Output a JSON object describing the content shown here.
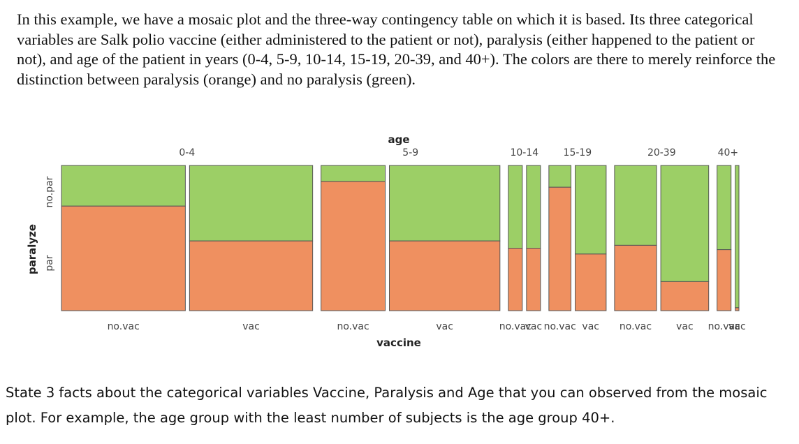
{
  "intro_text": "In this example, we have a mosaic plot and the three-way contingency table on which it is based. Its three categorical variables are Salk polio vaccine (either administered to the patient or not), paralysis (either happened to the patient or not), and age of the patient in years (0-4, 5-9, 10-14, 15-19, 20-39, and 40+). The colors are there to merely reinforce the distinction between paralysis (orange) and no paralysis (green).",
  "question_text": "State 3 facts about the categorical variables Vaccine, Paralysis and Age that you can observed from the mosaic plot. For example, the age group with the least number of subjects is the age group 40+.",
  "colors": {
    "paralysis": "#ef9060",
    "no_paralysis": "#9ccf66",
    "border": "#555555"
  },
  "chart_data": {
    "type": "mosaic",
    "top_axis_title": "age",
    "bottom_axis_title": "vaccine",
    "left_axis_title": "paralyze",
    "left_ticks": [
      "par",
      "no.par"
    ],
    "age_groups": [
      "0-4",
      "5-9",
      "10-14",
      "15-19",
      "20-39",
      "40+"
    ],
    "vaccine_levels": [
      "no.vac",
      "vac"
    ],
    "cells": [
      {
        "age": "0-4",
        "vaccine": "no.vac",
        "width_share": 0.1647,
        "par_share": 0.72
      },
      {
        "age": "0-4",
        "vaccine": "vac",
        "width_share": 0.1637,
        "par_share": 0.48
      },
      {
        "age": "5-9",
        "vaccine": "no.vac",
        "width_share": 0.0853,
        "par_share": 0.89
      },
      {
        "age": "5-9",
        "vaccine": "vac",
        "width_share": 0.147,
        "par_share": 0.48
      },
      {
        "age": "10-14",
        "vaccine": "no.vac",
        "width_share": 0.0186,
        "par_share": 0.43
      },
      {
        "age": "10-14",
        "vaccine": "vac",
        "width_share": 0.0186,
        "par_share": 0.43
      },
      {
        "age": "15-19",
        "vaccine": "no.vac",
        "width_share": 0.0294,
        "par_share": 0.85
      },
      {
        "age": "15-19",
        "vaccine": "vac",
        "width_share": 0.0412,
        "par_share": 0.39
      },
      {
        "age": "20-39",
        "vaccine": "no.vac",
        "width_share": 0.0559,
        "par_share": 0.45
      },
      {
        "age": "20-39",
        "vaccine": "vac",
        "width_share": 0.0637,
        "par_share": 0.2
      },
      {
        "age": "40+",
        "vaccine": "no.vac",
        "width_share": 0.0186,
        "par_share": 0.42
      },
      {
        "age": "40+",
        "vaccine": "vac",
        "width_share": 0.0049,
        "par_share": 0.02
      }
    ]
  }
}
